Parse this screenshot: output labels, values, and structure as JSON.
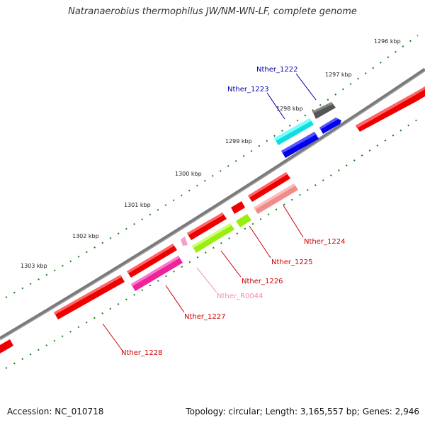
{
  "title": "Natranaerobius thermophilus JW/NM-WN-LF, complete genome",
  "accession": "Accession: NC_010718",
  "summary": "Topology: circular; Length: 3,165,557 bp; Genes: 2,946",
  "ticks": [
    "1296 kbp",
    "1297 kbp",
    "1298 kbp",
    "1299 kbp",
    "1300 kbp",
    "1301 kbp",
    "1302 kbp",
    "1303 kbp"
  ],
  "genes": [
    {
      "name": "Nther_1222",
      "color": "#0000aa"
    },
    {
      "name": "Nther_1223",
      "color": "#0000aa"
    },
    {
      "name": "Nther_1224",
      "color": "#cc0000"
    },
    {
      "name": "Nther_1225",
      "color": "#cc0000"
    },
    {
      "name": "Nther_1226",
      "color": "#cc0000"
    },
    {
      "name": "Nther_R0044",
      "color": "#f08cb8"
    },
    {
      "name": "Nther_1227",
      "color": "#cc0000"
    },
    {
      "name": "Nther_1228",
      "color": "#cc0000"
    }
  ],
  "colors": {
    "backbone": "#7a7a7a",
    "ticks": "#1a7a1a",
    "forward_cds": "#ee0000",
    "reverse_cds": "#ee0000",
    "pink_cds": "#f08c8c",
    "green_cds": "#99ee11",
    "magenta_cds": "#ee2299",
    "blue_cds": "#0000ee",
    "cyan_cds": "#11eeee",
    "gray_cds": "#555555",
    "rrna": "#f4a0c8"
  }
}
